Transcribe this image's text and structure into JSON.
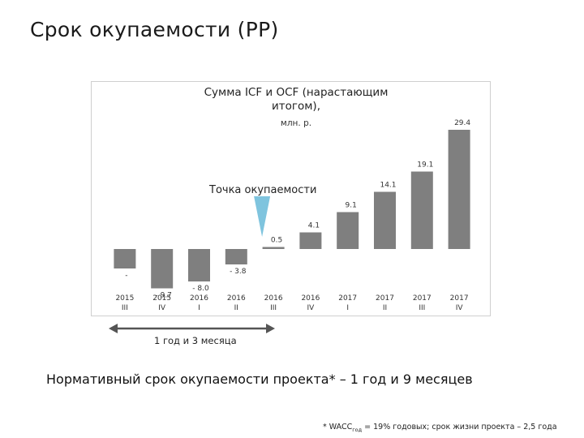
{
  "slide": {
    "title": "Срок окупаемости (PP)"
  },
  "chart_data": {
    "type": "bar",
    "title": "Сумма ICF и OCF (нарастающим итогом),",
    "subtitle": "млн. р.",
    "categories": [
      [
        "2015",
        "III"
      ],
      [
        "2015",
        "IV"
      ],
      [
        "2016",
        "I"
      ],
      [
        "2016",
        "II"
      ],
      [
        "2016",
        "III"
      ],
      [
        "2016",
        "IV"
      ],
      [
        "2017",
        "I"
      ],
      [
        "2017",
        "II"
      ],
      [
        "2017",
        "III"
      ],
      [
        "2017",
        "IV"
      ]
    ],
    "values": [
      -4.8,
      -9.7,
      -8.0,
      -3.8,
      0.5,
      4.1,
      9.1,
      14.1,
      19.1,
      29.4
    ],
    "data_labels": [
      "-",
      "- 9.7",
      "- 8.0",
      "- 3.8",
      "0.5",
      "4.1",
      "9.1",
      "14.1",
      "19.1",
      "29.4"
    ],
    "bar_color": "#7f7f7f",
    "grid": false,
    "ylim": [
      -11,
      31
    ],
    "payback_marker": {
      "label": "Точка окупаемости",
      "color": "#7fc4de",
      "position_category_index": 4
    }
  },
  "annotations": {
    "duration_label": "1 год и 3 месяца",
    "normative_text": "Нормативный срок окупаемости проекта* – 1 год и 9 месяцев",
    "footnote_prefix": "* WACC",
    "footnote_sub": "год",
    "footnote_suffix": " = 19% годовых; срок жизни проекта – 2,5 года"
  }
}
